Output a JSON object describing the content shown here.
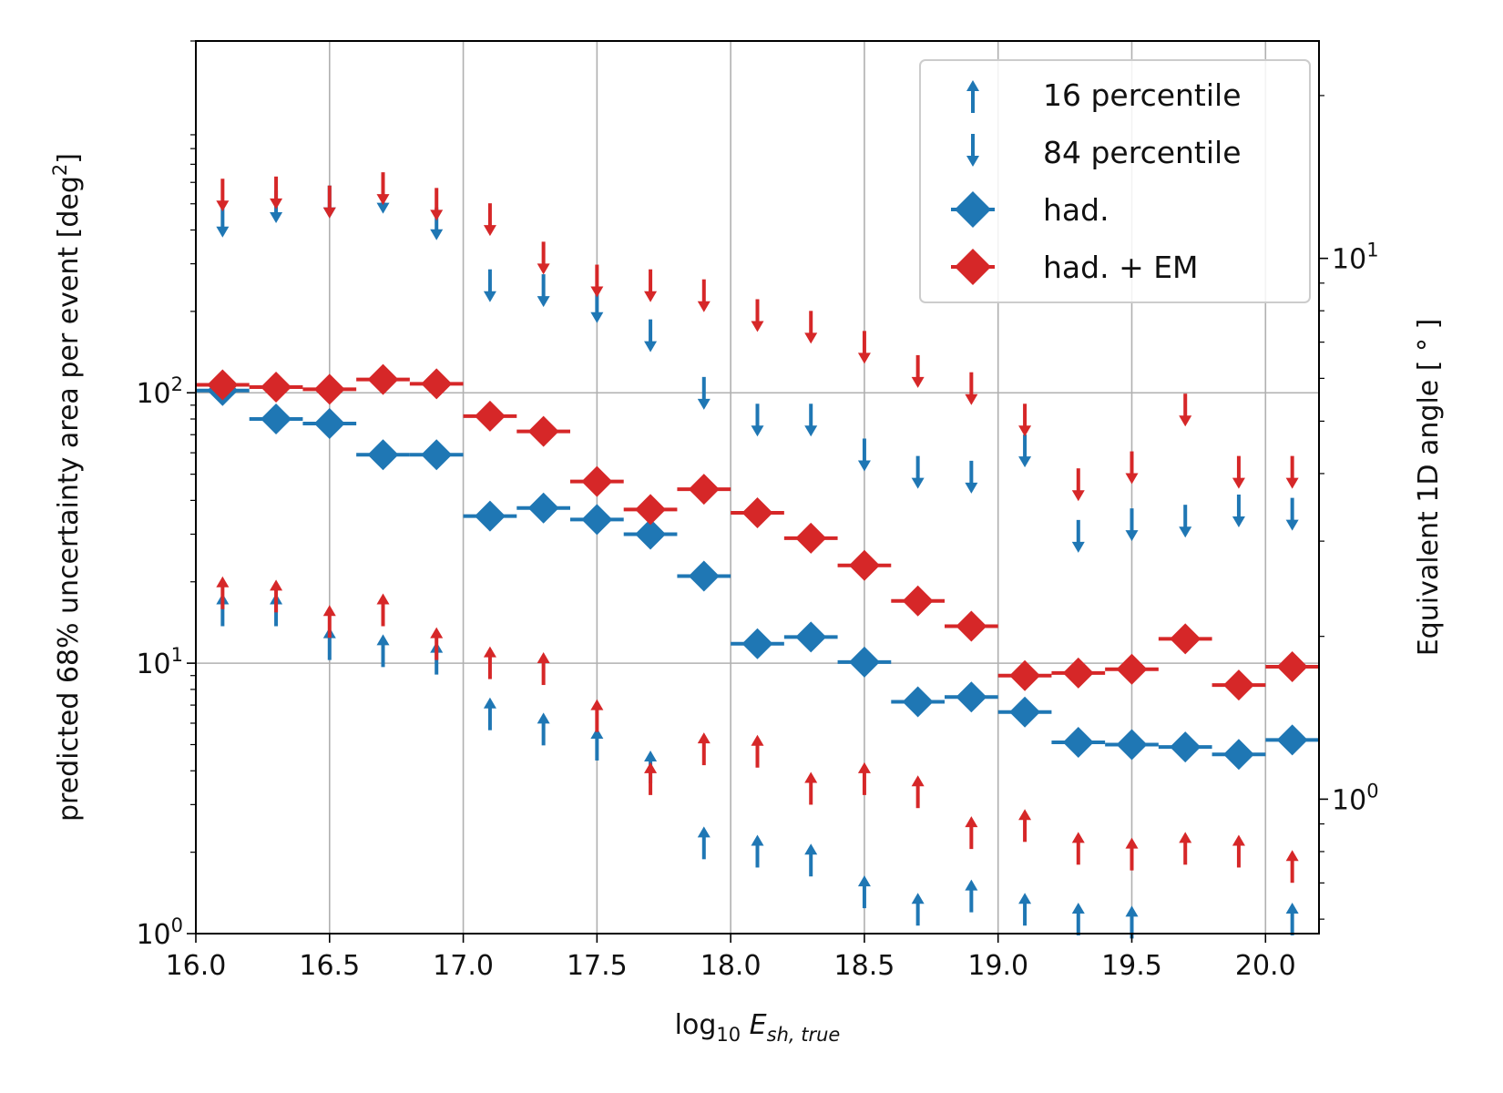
{
  "chart_data": {
    "type": "scatter",
    "xlabel": {
      "prefix": "log",
      "sub": "10",
      "var": "E",
      "varsub": "sh, true"
    },
    "ylabel": {
      "text": "predicted 68% uncertainty area per event [deg",
      "sup": "2",
      "suffix": "]"
    },
    "y2label": "Equivalent 1D angle [ ° ]",
    "xlim": [
      16.0,
      20.2
    ],
    "ylim": [
      1,
      2000
    ],
    "yscale": "log",
    "y2scale": "log",
    "grid": true,
    "legend_position": "top-right",
    "x_ticks": [
      "16.0",
      "16.5",
      "17.0",
      "17.5",
      "18.0",
      "18.5",
      "19.0",
      "19.5",
      "20.0"
    ],
    "y_ticks": [
      {
        "value": 1,
        "base": "10",
        "exp": "0"
      },
      {
        "value": 10,
        "base": "10",
        "exp": "1"
      },
      {
        "value": 100,
        "base": "10",
        "exp": "2"
      }
    ],
    "y2_ticks": [
      {
        "value": 1,
        "base": "10",
        "exp": "0"
      },
      {
        "value": 10,
        "base": "10",
        "exp": "1"
      }
    ],
    "x": [
      16.1,
      16.3,
      16.5,
      16.7,
      16.9,
      17.1,
      17.3,
      17.5,
      17.7,
      17.9,
      18.1,
      18.3,
      18.5,
      18.7,
      18.9,
      19.1,
      19.3,
      19.5,
      19.7,
      19.9,
      20.1
    ],
    "legend": [
      {
        "key": "p16",
        "label": "16 percentile",
        "marker": "arrow-up",
        "color": "#1f77b4"
      },
      {
        "key": "p84",
        "label": "84 percentile",
        "marker": "arrow-down",
        "color": "#1f77b4"
      },
      {
        "key": "had",
        "label": "had.",
        "marker": "diamond",
        "color": "#1f77b4"
      },
      {
        "key": "hadem",
        "label": "had. + EM",
        "marker": "diamond",
        "color": "#d62728"
      }
    ],
    "series": [
      {
        "name": "had.",
        "color": "#1f77b4",
        "median": [
          102,
          80,
          77,
          59,
          59,
          35,
          37.5,
          34,
          30,
          21,
          11.8,
          12.5,
          10.1,
          7.2,
          7.5,
          6.6,
          5.1,
          5.0,
          4.9,
          4.6,
          5.2
        ],
        "p16": [
          16,
          16,
          12,
          11.3,
          10.6,
          6.6,
          5.8,
          5.1,
          4.2,
          2.2,
          2.05,
          1.9,
          1.45,
          1.25,
          1.4,
          1.25,
          1.15,
          1.12,
          1.0,
          0.95,
          1.15
        ],
        "p84": [
          425,
          480,
          500,
          520,
          415,
          245,
          235,
          205,
          160,
          98,
          78,
          78,
          58,
          50,
          48,
          60,
          29,
          32,
          33,
          36,
          35
        ]
      },
      {
        "name": "had. + EM",
        "color": "#d62728",
        "median": [
          107,
          105,
          103,
          112,
          108,
          82,
          72,
          47,
          37,
          44,
          36,
          29,
          23,
          17,
          13.7,
          9.0,
          9.2,
          9.5,
          12.3,
          8.3,
          9.7
        ],
        "p16": [
          18.5,
          18,
          14.5,
          16,
          12,
          10.2,
          9.7,
          6.5,
          3.8,
          4.9,
          4.8,
          3.5,
          3.8,
          3.4,
          2.4,
          2.55,
          2.1,
          2.0,
          2.1,
          2.05,
          1.8
        ],
        "p84": [
          530,
          540,
          500,
          560,
          490,
          430,
          310,
          255,
          245,
          225,
          190,
          172,
          145,
          118,
          102,
          78,
          45,
          52,
          85,
          50,
          50
        ]
      }
    ]
  }
}
